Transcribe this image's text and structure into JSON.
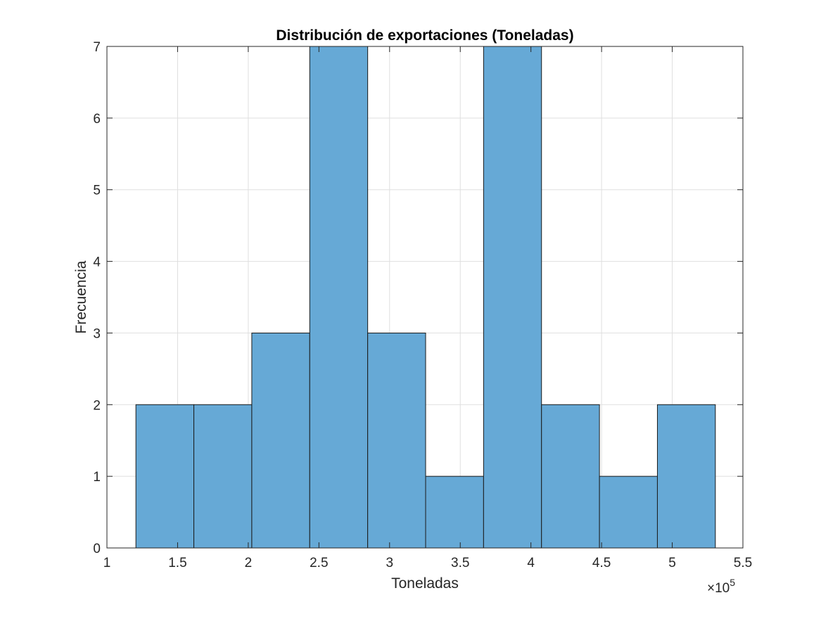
{
  "chart_data": {
    "type": "bar",
    "title": "Distribución de exportaciones (Toneladas)",
    "xlabel": "Toneladas",
    "ylabel": "Frecuencia",
    "x_multiplier": "×10",
    "x_multiplier_exp": "5",
    "xlim": [
      100000,
      550000
    ],
    "ylim": [
      0,
      7
    ],
    "xticks": [
      100000,
      150000,
      200000,
      250000,
      300000,
      350000,
      400000,
      450000,
      500000,
      550000
    ],
    "xtick_labels": [
      "1",
      "1.5",
      "2",
      "2.5",
      "3",
      "3.5",
      "4",
      "4.5",
      "5",
      "5.5"
    ],
    "yticks": [
      0,
      1,
      2,
      3,
      4,
      5,
      6,
      7
    ],
    "ytick_labels": [
      "0",
      "1",
      "2",
      "3",
      "4",
      "5",
      "6",
      "7"
    ],
    "bin_edges": [
      120500,
      161500,
      202500,
      243500,
      284500,
      325500,
      366500,
      407500,
      448500,
      489500,
      530500
    ],
    "counts": [
      2,
      2,
      3,
      7,
      3,
      1,
      7,
      2,
      1,
      2
    ],
    "grid": true,
    "bar_color": "#66a9d6",
    "edge_color": "#1a1a1a"
  }
}
